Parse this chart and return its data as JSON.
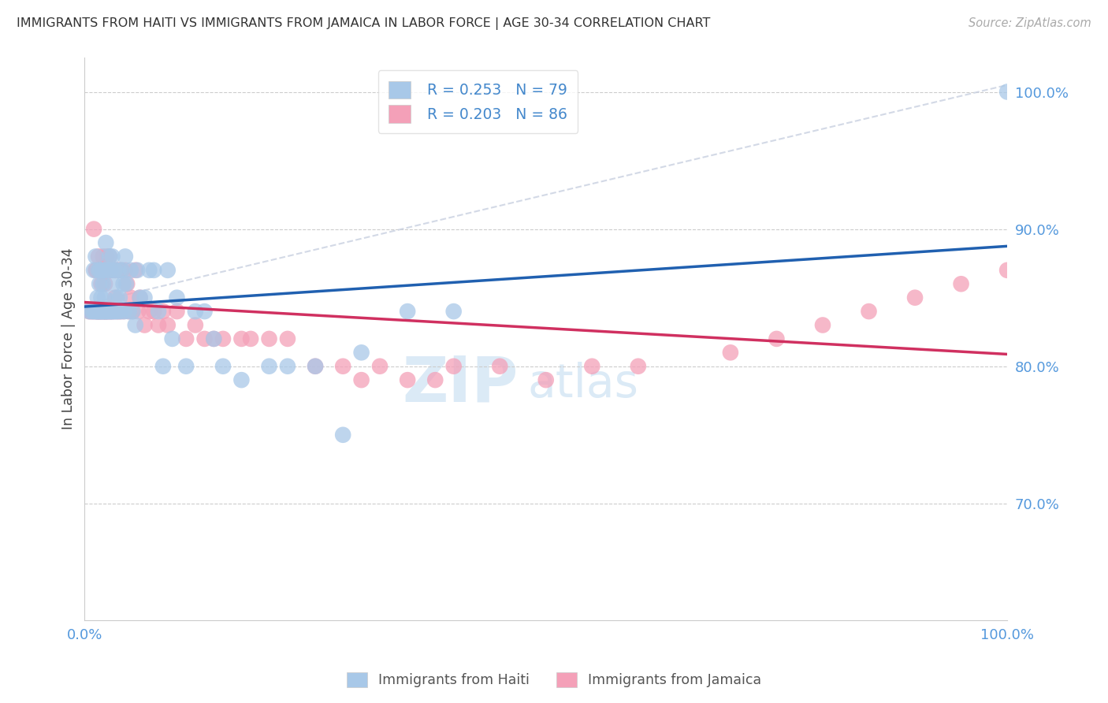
{
  "title": "IMMIGRANTS FROM HAITI VS IMMIGRANTS FROM JAMAICA IN LABOR FORCE | AGE 30-34 CORRELATION CHART",
  "source": "Source: ZipAtlas.com",
  "ylabel": "In Labor Force | Age 30-34",
  "xlim": [
    0.0,
    1.0
  ],
  "ylim": [
    0.615,
    1.025
  ],
  "yticks": [
    0.7,
    0.8,
    0.9,
    1.0
  ],
  "ytick_labels": [
    "70.0%",
    "80.0%",
    "90.0%",
    "100.0%"
  ],
  "xtick_labels": [
    "0.0%",
    "100.0%"
  ],
  "xtick_pos": [
    0.0,
    1.0
  ],
  "haiti_R": 0.253,
  "haiti_N": 79,
  "jamaica_R": 0.203,
  "jamaica_N": 86,
  "haiti_color": "#a8c8e8",
  "jamaica_color": "#f4a0b8",
  "haiti_line_color": "#2060b0",
  "jamaica_line_color": "#d03060",
  "trendline_dash_color": "#c8d0e0",
  "watermark_zip": "ZIP",
  "watermark_atlas": "atlas",
  "haiti_x": [
    0.005,
    0.008,
    0.01,
    0.01,
    0.012,
    0.012,
    0.013,
    0.014,
    0.014,
    0.015,
    0.015,
    0.016,
    0.016,
    0.017,
    0.017,
    0.018,
    0.018,
    0.019,
    0.019,
    0.02,
    0.02,
    0.021,
    0.021,
    0.022,
    0.022,
    0.023,
    0.023,
    0.024,
    0.025,
    0.025,
    0.026,
    0.027,
    0.028,
    0.028,
    0.029,
    0.03,
    0.03,
    0.031,
    0.032,
    0.033,
    0.034,
    0.035,
    0.036,
    0.037,
    0.038,
    0.039,
    0.04,
    0.042,
    0.043,
    0.044,
    0.045,
    0.048,
    0.05,
    0.052,
    0.055,
    0.057,
    0.06,
    0.065,
    0.07,
    0.075,
    0.08,
    0.085,
    0.09,
    0.095,
    0.1,
    0.11,
    0.12,
    0.13,
    0.14,
    0.15,
    0.17,
    0.2,
    0.22,
    0.25,
    0.28,
    0.3,
    0.35,
    0.4,
    1.0
  ],
  "haiti_y": [
    0.84,
    0.84,
    0.84,
    0.87,
    0.84,
    0.88,
    0.84,
    0.85,
    0.84,
    0.84,
    0.87,
    0.84,
    0.86,
    0.84,
    0.87,
    0.84,
    0.85,
    0.87,
    0.84,
    0.84,
    0.86,
    0.84,
    0.87,
    0.85,
    0.84,
    0.84,
    0.89,
    0.84,
    0.84,
    0.87,
    0.84,
    0.88,
    0.84,
    0.87,
    0.84,
    0.84,
    0.88,
    0.86,
    0.84,
    0.87,
    0.84,
    0.85,
    0.84,
    0.87,
    0.85,
    0.84,
    0.87,
    0.86,
    0.84,
    0.88,
    0.86,
    0.84,
    0.87,
    0.84,
    0.83,
    0.87,
    0.85,
    0.85,
    0.87,
    0.87,
    0.84,
    0.8,
    0.87,
    0.82,
    0.85,
    0.8,
    0.84,
    0.84,
    0.82,
    0.8,
    0.79,
    0.8,
    0.8,
    0.8,
    0.75,
    0.81,
    0.84,
    0.84,
    1.0
  ],
  "jamaica_x": [
    0.005,
    0.007,
    0.009,
    0.01,
    0.011,
    0.012,
    0.013,
    0.013,
    0.014,
    0.015,
    0.015,
    0.016,
    0.017,
    0.017,
    0.018,
    0.018,
    0.019,
    0.02,
    0.02,
    0.021,
    0.021,
    0.022,
    0.022,
    0.023,
    0.024,
    0.024,
    0.025,
    0.026,
    0.027,
    0.027,
    0.028,
    0.029,
    0.03,
    0.031,
    0.032,
    0.033,
    0.034,
    0.035,
    0.036,
    0.037,
    0.038,
    0.039,
    0.04,
    0.042,
    0.044,
    0.046,
    0.048,
    0.05,
    0.052,
    0.055,
    0.058,
    0.06,
    0.065,
    0.07,
    0.075,
    0.08,
    0.085,
    0.09,
    0.1,
    0.11,
    0.12,
    0.13,
    0.14,
    0.15,
    0.17,
    0.18,
    0.2,
    0.22,
    0.25,
    0.28,
    0.3,
    0.32,
    0.35,
    0.38,
    0.4,
    0.45,
    0.5,
    0.55,
    0.6,
    0.7,
    0.75,
    0.8,
    0.85,
    0.9,
    0.95,
    1.0
  ],
  "jamaica_y": [
    0.84,
    0.84,
    0.84,
    0.9,
    0.84,
    0.87,
    0.84,
    0.87,
    0.84,
    0.84,
    0.88,
    0.84,
    0.87,
    0.84,
    0.86,
    0.84,
    0.87,
    0.84,
    0.88,
    0.84,
    0.87,
    0.84,
    0.86,
    0.84,
    0.84,
    0.88,
    0.84,
    0.87,
    0.84,
    0.88,
    0.84,
    0.87,
    0.84,
    0.87,
    0.84,
    0.85,
    0.87,
    0.84,
    0.87,
    0.84,
    0.87,
    0.84,
    0.87,
    0.84,
    0.87,
    0.86,
    0.84,
    0.85,
    0.84,
    0.87,
    0.84,
    0.85,
    0.83,
    0.84,
    0.84,
    0.83,
    0.84,
    0.83,
    0.84,
    0.82,
    0.83,
    0.82,
    0.82,
    0.82,
    0.82,
    0.82,
    0.82,
    0.82,
    0.8,
    0.8,
    0.79,
    0.8,
    0.79,
    0.79,
    0.8,
    0.8,
    0.79,
    0.8,
    0.8,
    0.81,
    0.82,
    0.83,
    0.84,
    0.85,
    0.86,
    0.87
  ]
}
